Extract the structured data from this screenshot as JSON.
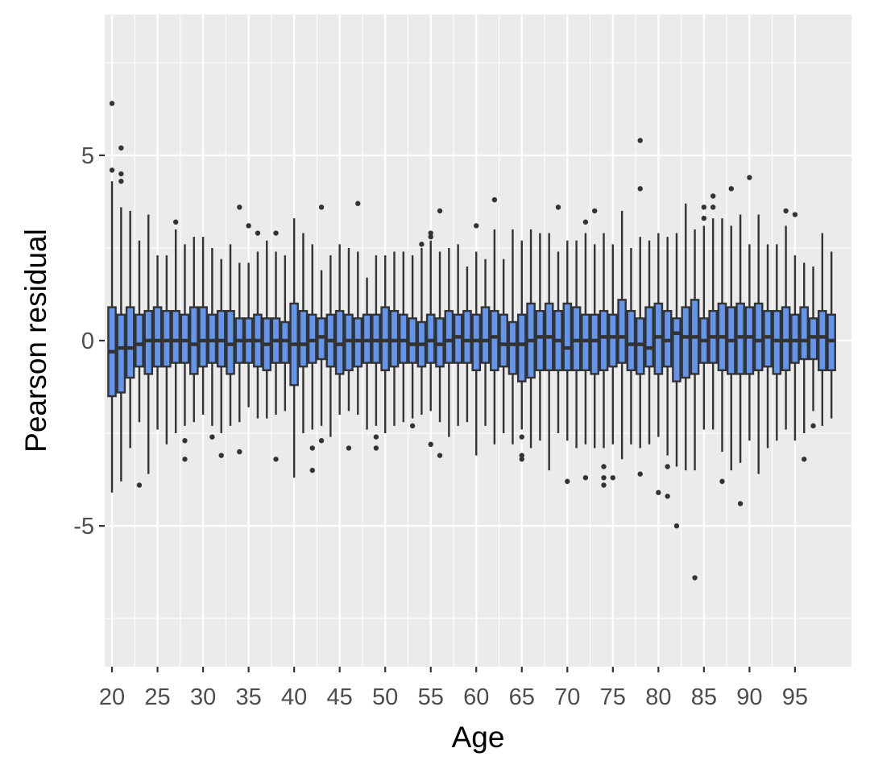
{
  "chart_data": {
    "type": "boxplot",
    "title": "",
    "xlabel": "Age",
    "ylabel": "Pearson residual",
    "xlim": [
      19.2,
      101.2
    ],
    "ylim": [
      -8.8,
      8.8
    ],
    "grid": true,
    "x_ticks": [
      20,
      25,
      30,
      35,
      40,
      45,
      50,
      55,
      60,
      65,
      70,
      75,
      80,
      85,
      90,
      95
    ],
    "x_tick_labels": [
      "20",
      "25",
      "30",
      "35",
      "40",
      "45",
      "50",
      "55",
      "60",
      "65",
      "70",
      "75",
      "80",
      "85",
      "90",
      "95"
    ],
    "y_ticks": [
      -5,
      0,
      5
    ],
    "y_tick_labels": [
      "-5",
      "0",
      "5"
    ],
    "fill_color": "#6495ED",
    "line_color": "#333333",
    "panel_color": "#EBEBEB",
    "grid_color": "#FFFFFF",
    "boxes": [
      {
        "age": 20,
        "q1": -1.5,
        "median": -0.3,
        "q3": 0.9,
        "whisker_low": -4.1,
        "whisker_high": 4.3,
        "outliers": [
          6.4,
          4.6
        ]
      },
      {
        "age": 21,
        "q1": -1.4,
        "median": -0.2,
        "q3": 0.7,
        "whisker_low": -3.8,
        "whisker_high": 3.6,
        "outliers": [
          5.2,
          4.5,
          4.3
        ]
      },
      {
        "age": 22,
        "q1": -1.0,
        "median": -0.2,
        "q3": 0.9,
        "whisker_low": -2.9,
        "whisker_high": 3.5,
        "outliers": []
      },
      {
        "age": 23,
        "q1": -0.7,
        "median": -0.1,
        "q3": 0.7,
        "whisker_low": -2.2,
        "whisker_high": 2.7,
        "outliers": [
          -3.9
        ]
      },
      {
        "age": 24,
        "q1": -0.9,
        "median": 0.0,
        "q3": 0.8,
        "whisker_low": -3.6,
        "whisker_high": 3.4,
        "outliers": []
      },
      {
        "age": 25,
        "q1": -0.7,
        "median": 0.0,
        "q3": 0.9,
        "whisker_low": -2.4,
        "whisker_high": 2.3,
        "outliers": []
      },
      {
        "age": 26,
        "q1": -0.7,
        "median": 0.0,
        "q3": 0.8,
        "whisker_low": -2.8,
        "whisker_high": 2.3,
        "outliers": []
      },
      {
        "age": 27,
        "q1": -0.6,
        "median": 0.0,
        "q3": 0.8,
        "whisker_low": -2.5,
        "whisker_high": 3.0,
        "outliers": [
          3.2
        ]
      },
      {
        "age": 28,
        "q1": -0.6,
        "median": 0.0,
        "q3": 0.7,
        "whisker_low": -2.3,
        "whisker_high": 2.6,
        "outliers": [
          -2.7,
          -3.2
        ]
      },
      {
        "age": 29,
        "q1": -0.9,
        "median": -0.1,
        "q3": 0.9,
        "whisker_low": -2.2,
        "whisker_high": 2.8,
        "outliers": []
      },
      {
        "age": 30,
        "q1": -0.7,
        "median": 0.0,
        "q3": 0.9,
        "whisker_low": -2.0,
        "whisker_high": 2.8,
        "outliers": []
      },
      {
        "age": 31,
        "q1": -0.6,
        "median": 0.0,
        "q3": 0.7,
        "whisker_low": -2.3,
        "whisker_high": 2.5,
        "outliers": [
          -2.6
        ]
      },
      {
        "age": 32,
        "q1": -0.7,
        "median": 0.0,
        "q3": 0.8,
        "whisker_low": -2.5,
        "whisker_high": 2.2,
        "outliers": [
          -3.1
        ]
      },
      {
        "age": 33,
        "q1": -0.9,
        "median": -0.1,
        "q3": 0.8,
        "whisker_low": -2.3,
        "whisker_high": 2.6,
        "outliers": []
      },
      {
        "age": 34,
        "q1": -0.6,
        "median": 0.0,
        "q3": 0.6,
        "whisker_low": -2.2,
        "whisker_high": 2.1,
        "outliers": [
          3.6,
          -3.0
        ]
      },
      {
        "age": 35,
        "q1": -0.6,
        "median": 0.0,
        "q3": 0.6,
        "whisker_low": -1.8,
        "whisker_high": 2.1,
        "outliers": [
          3.1
        ]
      },
      {
        "age": 36,
        "q1": -0.7,
        "median": 0.0,
        "q3": 0.7,
        "whisker_low": -2.1,
        "whisker_high": 2.4,
        "outliers": [
          2.9
        ]
      },
      {
        "age": 37,
        "q1": -0.8,
        "median": -0.1,
        "q3": 0.6,
        "whisker_low": -2.1,
        "whisker_high": 2.7,
        "outliers": []
      },
      {
        "age": 38,
        "q1": -0.6,
        "median": 0.0,
        "q3": 0.6,
        "whisker_low": -2.0,
        "whisker_high": 2.4,
        "outliers": [
          2.9,
          -3.2
        ]
      },
      {
        "age": 39,
        "q1": -0.6,
        "median": 0.0,
        "q3": 0.5,
        "whisker_low": -1.9,
        "whisker_high": 2.3,
        "outliers": []
      },
      {
        "age": 40,
        "q1": -1.2,
        "median": -0.1,
        "q3": 1.0,
        "whisker_low": -3.7,
        "whisker_high": 3.3,
        "outliers": []
      },
      {
        "age": 41,
        "q1": -0.7,
        "median": -0.1,
        "q3": 0.8,
        "whisker_low": -2.5,
        "whisker_high": 2.9,
        "outliers": []
      },
      {
        "age": 42,
        "q1": -0.6,
        "median": 0.0,
        "q3": 0.7,
        "whisker_low": -2.4,
        "whisker_high": 2.6,
        "outliers": [
          -2.9,
          -3.5
        ]
      },
      {
        "age": 43,
        "q1": -0.5,
        "median": 0.1,
        "q3": 0.6,
        "whisker_low": -2.3,
        "whisker_high": 1.9,
        "outliers": [
          3.6,
          -2.7
        ]
      },
      {
        "age": 44,
        "q1": -0.7,
        "median": 0.0,
        "q3": 0.7,
        "whisker_low": -2.6,
        "whisker_high": 2.3,
        "outliers": []
      },
      {
        "age": 45,
        "q1": -0.9,
        "median": -0.1,
        "q3": 0.8,
        "whisker_low": -2.0,
        "whisker_high": 2.6,
        "outliers": []
      },
      {
        "age": 46,
        "q1": -0.8,
        "median": 0.0,
        "q3": 0.7,
        "whisker_low": -1.9,
        "whisker_high": 2.5,
        "outliers": [
          -2.9
        ]
      },
      {
        "age": 47,
        "q1": -0.7,
        "median": 0.0,
        "q3": 0.6,
        "whisker_low": -2.0,
        "whisker_high": 2.4,
        "outliers": [
          3.7
        ]
      },
      {
        "age": 48,
        "q1": -0.6,
        "median": 0.0,
        "q3": 0.7,
        "whisker_low": -2.4,
        "whisker_high": 1.7,
        "outliers": []
      },
      {
        "age": 49,
        "q1": -0.6,
        "median": 0.0,
        "q3": 0.7,
        "whisker_low": -2.3,
        "whisker_high": 2.3,
        "outliers": [
          -2.6,
          -2.9
        ]
      },
      {
        "age": 50,
        "q1": -0.8,
        "median": 0.0,
        "q3": 0.9,
        "whisker_low": -2.5,
        "whisker_high": 2.3,
        "outliers": []
      },
      {
        "age": 51,
        "q1": -0.7,
        "median": 0.0,
        "q3": 0.8,
        "whisker_low": -2.3,
        "whisker_high": 2.4,
        "outliers": []
      },
      {
        "age": 52,
        "q1": -0.6,
        "median": 0.0,
        "q3": 0.7,
        "whisker_low": -2.2,
        "whisker_high": 2.4,
        "outliers": []
      },
      {
        "age": 53,
        "q1": -0.6,
        "median": -0.1,
        "q3": 0.6,
        "whisker_low": -2.1,
        "whisker_high": 2.3,
        "outliers": [
          -2.3
        ]
      },
      {
        "age": 54,
        "q1": -0.7,
        "median": -0.1,
        "q3": 0.5,
        "whisker_low": -2.0,
        "whisker_high": 2.5,
        "outliers": [
          2.6
        ]
      },
      {
        "age": 55,
        "q1": -0.6,
        "median": 0.0,
        "q3": 0.7,
        "whisker_low": -1.9,
        "whisker_high": 2.7,
        "outliers": [
          2.9,
          2.8,
          -2.8
        ]
      },
      {
        "age": 56,
        "q1": -0.7,
        "median": -0.1,
        "q3": 0.6,
        "whisker_low": -2.2,
        "whisker_high": 2.4,
        "outliers": [
          3.5,
          -3.1
        ]
      },
      {
        "age": 57,
        "q1": -0.6,
        "median": 0.0,
        "q3": 0.8,
        "whisker_low": -2.6,
        "whisker_high": 2.5,
        "outliers": []
      },
      {
        "age": 58,
        "q1": -0.6,
        "median": 0.1,
        "q3": 0.7,
        "whisker_low": -2.3,
        "whisker_high": 2.6,
        "outliers": []
      },
      {
        "age": 59,
        "q1": -0.6,
        "median": 0.0,
        "q3": 0.8,
        "whisker_low": -2.2,
        "whisker_high": 2.0,
        "outliers": []
      },
      {
        "age": 60,
        "q1": -0.8,
        "median": 0.0,
        "q3": 0.7,
        "whisker_low": -3.1,
        "whisker_high": 2.4,
        "outliers": [
          3.1
        ]
      },
      {
        "age": 61,
        "q1": -0.6,
        "median": 0.0,
        "q3": 0.9,
        "whisker_low": -2.3,
        "whisker_high": 2.2,
        "outliers": []
      },
      {
        "age": 62,
        "q1": -0.8,
        "median": 0.1,
        "q3": 0.8,
        "whisker_low": -2.8,
        "whisker_high": 3.0,
        "outliers": [
          3.8
        ]
      },
      {
        "age": 63,
        "q1": -0.7,
        "median": -0.1,
        "q3": 0.7,
        "whisker_low": -2.5,
        "whisker_high": 2.2,
        "outliers": []
      },
      {
        "age": 64,
        "q1": -0.9,
        "median": -0.1,
        "q3": 0.5,
        "whisker_low": -2.8,
        "whisker_high": 3.0,
        "outliers": []
      },
      {
        "age": 65,
        "q1": -1.1,
        "median": -0.1,
        "q3": 0.7,
        "whisker_low": -2.4,
        "whisker_high": 2.7,
        "outliers": [
          -2.6,
          -3.1,
          -3.2
        ]
      },
      {
        "age": 66,
        "q1": -1.0,
        "median": 0.0,
        "q3": 1.0,
        "whisker_low": -2.9,
        "whisker_high": 3.0,
        "outliers": []
      },
      {
        "age": 67,
        "q1": -0.8,
        "median": 0.1,
        "q3": 0.8,
        "whisker_low": -2.7,
        "whisker_high": 2.9,
        "outliers": []
      },
      {
        "age": 68,
        "q1": -0.8,
        "median": 0.1,
        "q3": 1.0,
        "whisker_low": -3.5,
        "whisker_high": 2.9,
        "outliers": []
      },
      {
        "age": 69,
        "q1": -0.8,
        "median": 0.0,
        "q3": 0.8,
        "whisker_low": -2.5,
        "whisker_high": 2.4,
        "outliers": [
          3.6
        ]
      },
      {
        "age": 70,
        "q1": -0.8,
        "median": -0.2,
        "q3": 1.0,
        "whisker_low": -2.7,
        "whisker_high": 2.7,
        "outliers": [
          -3.8
        ]
      },
      {
        "age": 71,
        "q1": -0.8,
        "median": 0.0,
        "q3": 0.9,
        "whisker_low": -2.9,
        "whisker_high": 2.7,
        "outliers": []
      },
      {
        "age": 72,
        "q1": -0.8,
        "median": 0.0,
        "q3": 0.7,
        "whisker_low": -2.8,
        "whisker_high": 2.9,
        "outliers": [
          3.2,
          -3.7
        ]
      },
      {
        "age": 73,
        "q1": -0.9,
        "median": 0.0,
        "q3": 0.7,
        "whisker_low": -2.9,
        "whisker_high": 2.6,
        "outliers": [
          3.5
        ]
      },
      {
        "age": 74,
        "q1": -0.8,
        "median": 0.1,
        "q3": 0.8,
        "whisker_low": -2.9,
        "whisker_high": 2.9,
        "outliers": [
          -3.4,
          -3.7,
          -3.9
        ]
      },
      {
        "age": 75,
        "q1": -0.7,
        "median": 0.1,
        "q3": 0.7,
        "whisker_low": -2.8,
        "whisker_high": 2.6,
        "outliers": [
          -3.7
        ]
      },
      {
        "age": 76,
        "q1": -0.6,
        "median": 0.1,
        "q3": 1.1,
        "whisker_low": -3.2,
        "whisker_high": 3.5,
        "outliers": []
      },
      {
        "age": 77,
        "q1": -0.8,
        "median": -0.1,
        "q3": 0.8,
        "whisker_low": -2.8,
        "whisker_high": 2.5,
        "outliers": []
      },
      {
        "age": 78,
        "q1": -0.9,
        "median": -0.1,
        "q3": 0.6,
        "whisker_low": -2.9,
        "whisker_high": 2.8,
        "outliers": [
          5.4,
          4.1,
          -3.6
        ]
      },
      {
        "age": 79,
        "q1": -0.7,
        "median": -0.2,
        "q3": 0.9,
        "whisker_low": -2.8,
        "whisker_high": 2.7,
        "outliers": []
      },
      {
        "age": 80,
        "q1": -0.9,
        "median": 0.1,
        "q3": 1.0,
        "whisker_low": -2.6,
        "whisker_high": 2.9,
        "outliers": [
          -4.1
        ]
      },
      {
        "age": 81,
        "q1": -0.7,
        "median": 0.0,
        "q3": 0.8,
        "whisker_low": -3.1,
        "whisker_high": 2.8,
        "outliers": [
          -3.4,
          -4.2
        ]
      },
      {
        "age": 82,
        "q1": -1.1,
        "median": 0.2,
        "q3": 0.6,
        "whisker_low": -3.4,
        "whisker_high": 2.9,
        "outliers": [
          -5.0
        ]
      },
      {
        "age": 83,
        "q1": -1.0,
        "median": 0.1,
        "q3": 0.9,
        "whisker_low": -3.5,
        "whisker_high": 3.7,
        "outliers": []
      },
      {
        "age": 84,
        "q1": -0.9,
        "median": 0.1,
        "q3": 1.1,
        "whisker_low": -3.5,
        "whisker_high": 3.0,
        "outliers": [
          -6.4
        ]
      },
      {
        "age": 85,
        "q1": -0.6,
        "median": 0.0,
        "q3": 0.6,
        "whisker_low": -2.4,
        "whisker_high": 3.1,
        "outliers": [
          3.6,
          3.3
        ]
      },
      {
        "age": 86,
        "q1": -0.6,
        "median": 0.1,
        "q3": 0.8,
        "whisker_low": -2.4,
        "whisker_high": 3.3,
        "outliers": [
          3.9,
          3.6
        ]
      },
      {
        "age": 87,
        "q1": -0.8,
        "median": 0.1,
        "q3": 1.0,
        "whisker_low": -3.0,
        "whisker_high": 3.3,
        "outliers": [
          -3.8
        ]
      },
      {
        "age": 88,
        "q1": -0.9,
        "median": 0.0,
        "q3": 0.9,
        "whisker_low": -3.5,
        "whisker_high": 3.1,
        "outliers": [
          4.1
        ]
      },
      {
        "age": 89,
        "q1": -0.9,
        "median": 0.1,
        "q3": 1.0,
        "whisker_low": -3.3,
        "whisker_high": 3.4,
        "outliers": [
          -4.4
        ]
      },
      {
        "age": 90,
        "q1": -0.9,
        "median": 0.1,
        "q3": 0.9,
        "whisker_low": -2.7,
        "whisker_high": 2.6,
        "outliers": [
          4.4
        ]
      },
      {
        "age": 91,
        "q1": -0.8,
        "median": 0.0,
        "q3": 1.0,
        "whisker_low": -3.6,
        "whisker_high": 3.4,
        "outliers": []
      },
      {
        "age": 92,
        "q1": -0.7,
        "median": 0.1,
        "q3": 0.8,
        "whisker_low": -2.9,
        "whisker_high": 2.6,
        "outliers": []
      },
      {
        "age": 93,
        "q1": -0.9,
        "median": 0.0,
        "q3": 0.8,
        "whisker_low": -2.7,
        "whisker_high": 2.6,
        "outliers": []
      },
      {
        "age": 94,
        "q1": -0.8,
        "median": 0.0,
        "q3": 0.9,
        "whisker_low": -2.4,
        "whisker_high": 3.1,
        "outliers": [
          3.5
        ]
      },
      {
        "age": 95,
        "q1": -0.6,
        "median": 0.0,
        "q3": 0.7,
        "whisker_low": -2.7,
        "whisker_high": 2.3,
        "outliers": [
          3.4
        ]
      },
      {
        "age": 96,
        "q1": -0.5,
        "median": 0.0,
        "q3": 0.9,
        "whisker_low": -2.5,
        "whisker_high": 2.1,
        "outliers": [
          -3.2
        ]
      },
      {
        "age": 97,
        "q1": -0.5,
        "median": 0.1,
        "q3": 0.6,
        "whisker_low": -1.9,
        "whisker_high": 2.0,
        "outliers": [
          -2.3
        ]
      },
      {
        "age": 98,
        "q1": -0.8,
        "median": 0.1,
        "q3": 0.8,
        "whisker_low": -2.3,
        "whisker_high": 2.9,
        "outliers": []
      },
      {
        "age": 99,
        "q1": -0.8,
        "median": 0.0,
        "q3": 0.7,
        "whisker_low": -2.1,
        "whisker_high": 2.4,
        "outliers": []
      }
    ]
  }
}
